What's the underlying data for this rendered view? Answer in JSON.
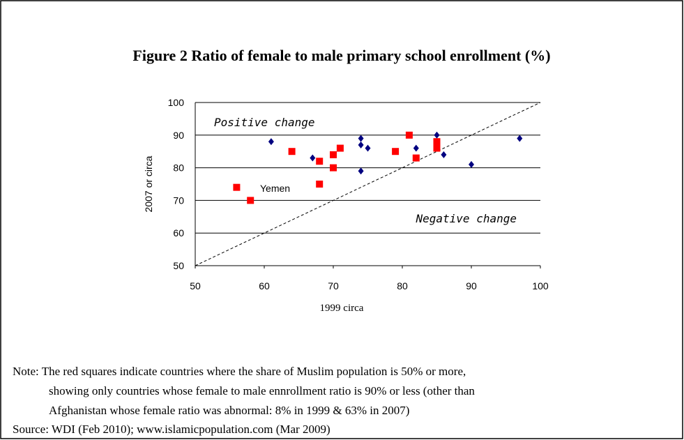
{
  "chart_data": {
    "type": "scatter",
    "title": "Figure 2 Ratio of female to male primary school enrollment (%)",
    "x_label": "1999 circa",
    "y_label": "2007 or circa",
    "xlim": [
      50,
      100
    ],
    "ylim": [
      50,
      100
    ],
    "xticks": [
      50,
      60,
      70,
      80,
      90,
      100
    ],
    "yticks": [
      50,
      60,
      70,
      80,
      90,
      100
    ],
    "grid": true,
    "series": [
      {
        "color": "#000080",
        "marker": "diamond",
        "x": [
          61,
          67,
          68,
          74,
          74,
          74,
          75,
          82,
          85,
          86,
          90,
          97
        ],
        "y": [
          88,
          83,
          82,
          89,
          87,
          79,
          86,
          86,
          90,
          84,
          81,
          89
        ]
      },
      {
        "color": "#ff0000",
        "marker": "square",
        "x": [
          56,
          58,
          64,
          68,
          68,
          70,
          70,
          71,
          79,
          81,
          82,
          85,
          85,
          85
        ],
        "y": [
          74,
          70,
          85,
          75,
          82,
          84,
          80,
          86,
          85,
          90,
          83,
          86,
          87,
          88
        ]
      }
    ],
    "annotations": [
      "Positive change",
      "Negative change",
      "Yemen"
    ],
    "note": [
      "Note: The red squares indicate countries where the share of Muslim population is 50% or more,",
      "showing only countries whose female to male ennrollment ratio is 90% or less (other than",
      "Afghanistan whose female ratio was abnormal: 8% in 1999 & 63% in 2007)"
    ],
    "source": "Source: WDI (Feb 2010); www.islamicpopulation.com (Mar 2009)"
  }
}
